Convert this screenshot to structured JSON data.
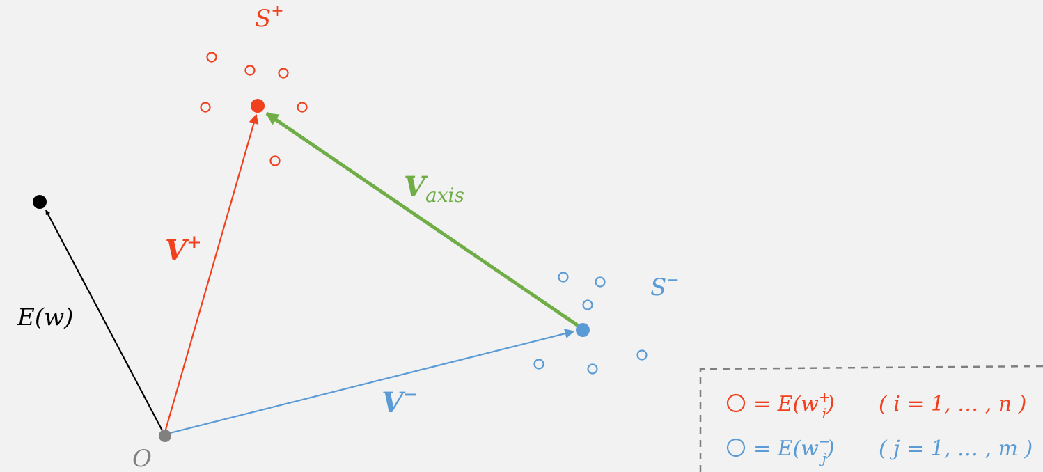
{
  "colors": {
    "background": "#f2f2f2",
    "positive": "#f0401e",
    "negative": "#5b9bd5",
    "axis": "#70ad47",
    "word": "#000000",
    "origin": "#808080",
    "legend_border": "#7f7f7f"
  },
  "labels": {
    "s_plus_base": "S",
    "s_plus_sup": "+",
    "s_minus_base": "S",
    "s_minus_sup": "−",
    "v_plus_base": "V",
    "v_plus_sup": "+",
    "v_minus_base": "V",
    "v_minus_sup": "−",
    "v_axis_base": "V",
    "v_axis_sub": "axis",
    "e_w": "E(w)",
    "origin": "O"
  },
  "legend": {
    "row1": {
      "marker": "circle-outline-red",
      "eq": "= E(w",
      "sup": "+",
      "sub": "i",
      "close": ")",
      "range": "( i = 1, … , n )"
    },
    "row2": {
      "marker": "circle-outline-blue",
      "eq": "= E(w",
      "sup": "−",
      "sub": "j",
      "close": ")",
      "range": "( j = 1, … , m )"
    }
  }
}
